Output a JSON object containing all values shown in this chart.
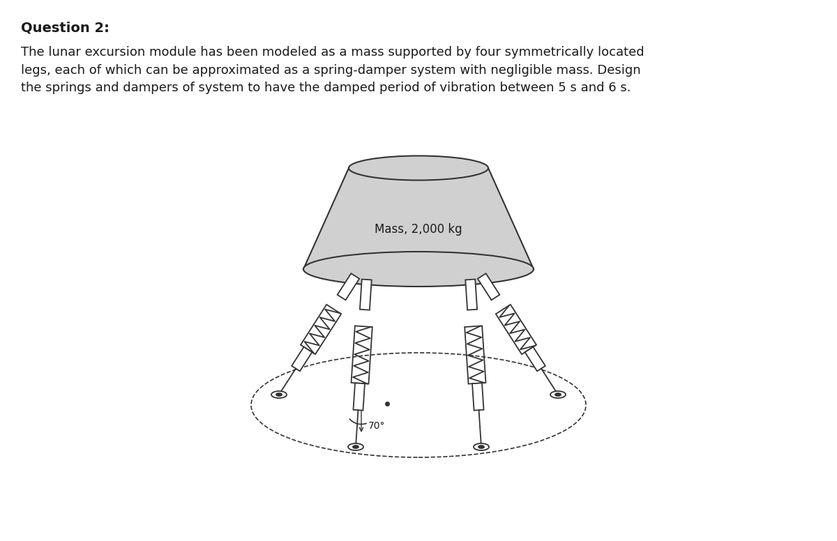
{
  "title": "Question 2:",
  "body_text": "The lunar excursion module has been modeled as a mass supported by four symmetrically located\nlegs, each of which can be approximated as a spring-damper system with negligible mass. Design\nthe springs and dampers of system to have the damped period of vibration between 5 s and 6 s.",
  "mass_label": "Mass, 2,000 kg",
  "angle_label": "70°",
  "bg_color": "#ffffff",
  "body_color": "#d0d0d0",
  "outline_color": "#333333",
  "text_color": "#1a1a1a",
  "title_fontsize": 14,
  "body_fontsize": 13,
  "label_fontsize": 12
}
